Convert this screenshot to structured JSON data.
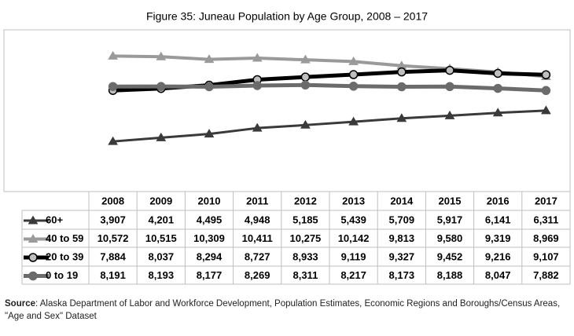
{
  "chart_data": {
    "type": "line",
    "title": "Figure 35: Juneau Population by Age Group, 2008 – 2017",
    "categories": [
      "2008",
      "2009",
      "2010",
      "2011",
      "2012",
      "2013",
      "2014",
      "2015",
      "2016",
      "2017"
    ],
    "ylim": [
      0,
      12000
    ],
    "series": [
      {
        "name": "60+",
        "color": "#3a3a3a",
        "marker": "triangle",
        "marker_color": "#3a3a3a",
        "values": [
          3907,
          4201,
          4495,
          4948,
          5185,
          5439,
          5709,
          5917,
          6141,
          6311
        ],
        "value_labels": [
          "3,907",
          "4,201",
          "4,495",
          "4,948",
          "5,185",
          "5,439",
          "5,709",
          "5,917",
          "6,141",
          "6,311"
        ]
      },
      {
        "name": "40 to 59",
        "color": "#9a9a9a",
        "marker": "triangle",
        "marker_color": "#9a9a9a",
        "values": [
          10572,
          10515,
          10309,
          10411,
          10275,
          10142,
          9813,
          9580,
          9319,
          8969
        ],
        "value_labels": [
          "10,572",
          "10,515",
          "10,309",
          "10,411",
          "10,275",
          "10,142",
          "9,813",
          "9,580",
          "9,319",
          "8,969"
        ]
      },
      {
        "name": "20 to 39",
        "color": "#000000",
        "marker": "circle",
        "marker_color": "#bfbfbf",
        "values": [
          7884,
          8037,
          8294,
          8727,
          8933,
          9119,
          9327,
          9452,
          9216,
          9107
        ],
        "value_labels": [
          "7,884",
          "8,037",
          "8,294",
          "8,727",
          "8,933",
          "9,119",
          "9,327",
          "9,452",
          "9,216",
          "9,107"
        ]
      },
      {
        "name": "0 to 19",
        "color": "#6b6b6b",
        "marker": "circle",
        "marker_color": "#6b6b6b",
        "values": [
          8191,
          8193,
          8177,
          8269,
          8311,
          8217,
          8173,
          8188,
          8047,
          7882
        ],
        "value_labels": [
          "8,191",
          "8,193",
          "8,177",
          "8,269",
          "8,311",
          "8,217",
          "8,173",
          "8,188",
          "8,047",
          "7,882"
        ]
      }
    ],
    "source_label": "Source",
    "source": ": Alaska Department of Labor and Workforce Development, Population Estimates, Economic Regions and Boroughs/Census Areas, \"Age and Sex\" Dataset"
  }
}
